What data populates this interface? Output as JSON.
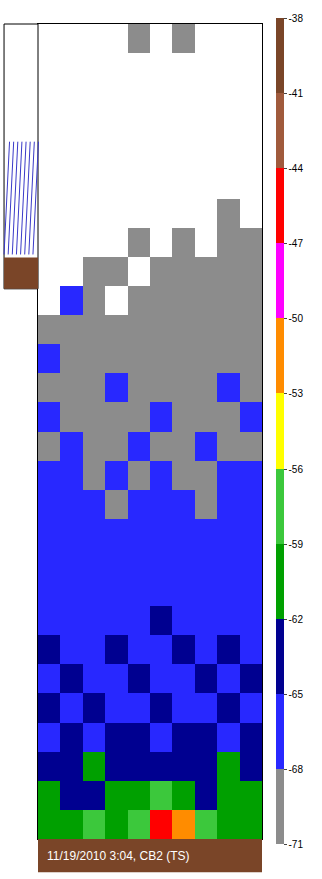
{
  "chart_data": {
    "type": "heatmap",
    "annotations": [
      "11/19/2010 3:04, CB2 (TS)"
    ],
    "tick_labels": false,
    "cells": [
      [
        null,
        null,
        null,
        null,
        -70,
        null,
        -69,
        null,
        null,
        null
      ],
      [
        null,
        null,
        null,
        null,
        null,
        null,
        null,
        null,
        null,
        null
      ],
      [
        null,
        null,
        null,
        null,
        null,
        null,
        null,
        null,
        null,
        null
      ],
      [
        null,
        null,
        null,
        null,
        null,
        null,
        null,
        null,
        null,
        null
      ],
      [
        null,
        null,
        null,
        null,
        null,
        null,
        null,
        null,
        null,
        null
      ],
      [
        null,
        null,
        null,
        null,
        null,
        null,
        null,
        null,
        null,
        null
      ],
      [
        null,
        null,
        null,
        null,
        null,
        null,
        null,
        null,
        -70,
        null
      ],
      [
        null,
        null,
        null,
        null,
        -70,
        null,
        -70,
        null,
        -70,
        -70
      ],
      [
        null,
        null,
        -70,
        -70,
        null,
        -70,
        -69,
        -70,
        -70,
        -69
      ],
      [
        null,
        -66,
        -70,
        null,
        -70,
        -69,
        -70,
        -69,
        -70,
        -70
      ],
      [
        -70,
        -69,
        -70,
        -70,
        -69,
        -70,
        -69,
        -70,
        -69,
        -70
      ],
      [
        -68,
        -69,
        -70,
        -69,
        -70,
        -69,
        -69,
        -70,
        -69,
        -69
      ],
      [
        -69,
        -70,
        -69,
        -68,
        -69,
        -70,
        -69,
        -69,
        -68,
        -69
      ],
      [
        -68,
        -69,
        -69,
        -70,
        -69,
        -68,
        -70,
        -69,
        -69,
        -68
      ],
      [
        -69,
        -68,
        -69,
        -69,
        -68,
        -69,
        -69,
        -68,
        -69,
        -69
      ],
      [
        -67,
        -68,
        -69,
        -68,
        -69,
        -68,
        -69,
        -69,
        -68,
        -67
      ],
      [
        -68,
        -67,
        -68,
        -69,
        -68,
        -67,
        -68,
        -69,
        -67,
        -68
      ],
      [
        -67,
        -68,
        -67,
        -68,
        -67,
        -68,
        -67,
        -68,
        -67,
        -67
      ],
      [
        -66,
        -67,
        -68,
        -67,
        -68,
        -67,
        -66,
        -67,
        -68,
        -67
      ],
      [
        -67,
        -66,
        -67,
        -66,
        -67,
        -66,
        -67,
        -66,
        -67,
        -66
      ],
      [
        -66,
        -67,
        -66,
        -67,
        -66,
        -65,
        -66,
        -67,
        -66,
        -66
      ],
      [
        -65,
        -66,
        -66,
        -65,
        -66,
        -66,
        -65,
        -66,
        -65,
        -66
      ],
      [
        -66,
        -65,
        -66,
        -66,
        -65,
        -66,
        -66,
        -65,
        -66,
        -65
      ],
      [
        -65,
        -66,
        -65,
        -66,
        -66,
        -65,
        -66,
        -66,
        -65,
        -66
      ],
      [
        -66,
        -65,
        -66,
        -65,
        -65,
        -66,
        -65,
        -65,
        -66,
        -65
      ],
      [
        -64,
        -65,
        -61,
        -65,
        -64,
        -65,
        -64,
        -65,
        -60,
        -65
      ],
      [
        -61,
        -64,
        -63,
        -60,
        -62,
        -58,
        -61,
        -63,
        -60,
        -62
      ],
      [
        -60,
        -61,
        -59,
        -60,
        -57,
        -45,
        -52,
        -59,
        -61,
        -60
      ]
    ],
    "colorbar": {
      "range": [
        -71,
        -38
      ],
      "ticks": [
        -71,
        -68,
        -65,
        -62,
        -59,
        -56,
        -53,
        -50,
        -47,
        -44,
        -41,
        -38
      ],
      "colors": [
        "#8c8c8c",
        "#2828ff",
        "#000090",
        "#00a000",
        "#3cc83c",
        "#ffff00",
        "#ff8c00",
        "#ff00ff",
        "#ff0000",
        "#a05a3c",
        "#7a4528"
      ]
    }
  }
}
